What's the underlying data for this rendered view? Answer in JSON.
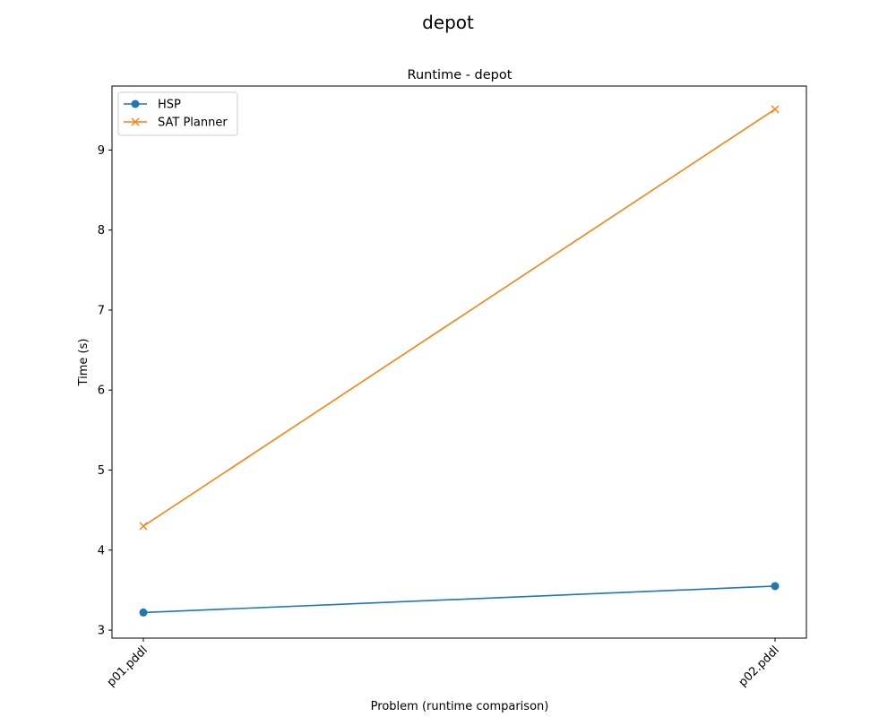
{
  "figure": {
    "suptitle": "depot"
  },
  "chart_data": {
    "type": "line",
    "title": "Runtime - depot",
    "xlabel": "Problem (runtime comparison)",
    "ylabel": "Time (s)",
    "categories": [
      "p01.pddl",
      "p02.pddl"
    ],
    "ylim": [
      2.9,
      9.8
    ],
    "yticks": [
      3,
      4,
      5,
      6,
      7,
      8,
      9
    ],
    "grid": false,
    "legend_position": "top-left",
    "series": [
      {
        "name": "HSP",
        "values": [
          3.22,
          3.55
        ],
        "color": "#1f77b4",
        "marker": "circle"
      },
      {
        "name": "SAT Planner",
        "values": [
          4.3,
          9.51
        ],
        "color": "#ff7f0e",
        "marker": "x"
      }
    ]
  }
}
